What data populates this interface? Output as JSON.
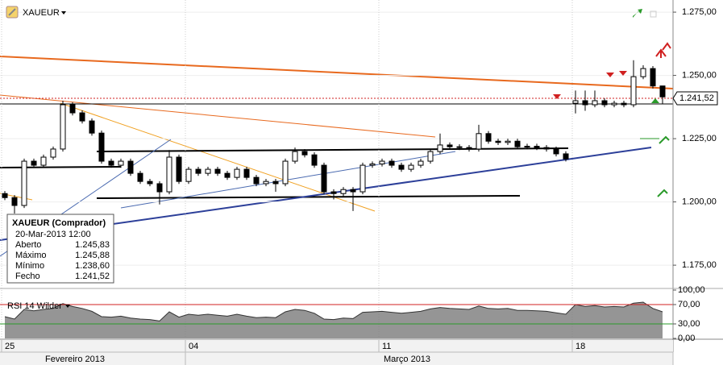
{
  "chart_data": {
    "type": "candlestick",
    "symbol": "XAUEUR",
    "categories": [
      "25",
      null,
      null,
      null,
      null,
      null,
      null,
      null,
      null,
      null,
      null,
      null,
      null,
      null,
      null,
      null,
      null,
      null,
      null,
      "04",
      null,
      null,
      null,
      null,
      null,
      null,
      null,
      null,
      null,
      null,
      null,
      null,
      null,
      null,
      null,
      null,
      null,
      null,
      null,
      "11",
      null,
      null,
      null,
      null,
      null,
      null,
      null,
      null,
      null,
      null,
      null,
      null,
      null,
      null,
      null,
      null,
      null,
      null,
      null,
      "18",
      null,
      null,
      null,
      null,
      null,
      null,
      null,
      null,
      null
    ],
    "months": [
      "Fevereiro 2013",
      "Março 2013"
    ],
    "open": [
      1203.3,
      1201.7,
      1198.6,
      1216.1,
      1214.5,
      1217.7,
      1220.9,
      1238.4,
      1235.2,
      1232.0,
      1227.2,
      1216.1,
      1214.5,
      1216.1,
      1211.3,
      1208.1,
      1207.2,
      1204.0,
      1217.7,
      1208.1,
      1212.9,
      1211.3,
      1212.9,
      1211.3,
      1209.7,
      1212.9,
      1209.7,
      1207.2,
      1208.1,
      1207.2,
      1216.1,
      1219.9,
      1218.6,
      1214.5,
      1204.0,
      1203.3,
      1204.9,
      1204.0,
      1214.5,
      1215.0,
      1216.1,
      1214.5,
      1212.9,
      1214.5,
      1216.1,
      1219.9,
      1222.5,
      1221.8,
      1221.5,
      1220.9,
      1227.0,
      1224.0,
      1223.5,
      1224.0,
      1221.8,
      1222.0,
      1221.5,
      1220.9,
      1219.0,
      1239.0,
      1240.0,
      1238.4,
      1240.0,
      1238.4,
      1239.0,
      1238.4,
      1249.5,
      1252.7,
      1245.83
    ],
    "high": [
      1204.3,
      1202.7,
      1217.1,
      1217.1,
      1218.7,
      1221.9,
      1240.0,
      1239.4,
      1236.2,
      1233.0,
      1228.2,
      1217.1,
      1217.1,
      1217.1,
      1212.3,
      1209.1,
      1208.2,
      1220.5,
      1218.7,
      1213.9,
      1213.9,
      1213.9,
      1213.9,
      1212.3,
      1213.9,
      1213.9,
      1210.7,
      1209.1,
      1209.1,
      1217.1,
      1221.5,
      1220.9,
      1219.6,
      1215.5,
      1205.0,
      1205.9,
      1205.9,
      1215.5,
      1216.0,
      1217.1,
      1217.1,
      1215.5,
      1215.5,
      1217.1,
      1220.9,
      1227.0,
      1223.5,
      1222.8,
      1222.5,
      1230.5,
      1228.0,
      1225.0,
      1225.0,
      1225.0,
      1223.0,
      1223.0,
      1222.5,
      1221.9,
      1220.0,
      1244.0,
      1244.0,
      1244.0,
      1241.0,
      1240.0,
      1240.0,
      1256.0,
      1254.0,
      1253.7,
      1245.88
    ],
    "low": [
      1200.7,
      1195.4,
      1197.6,
      1213.5,
      1213.5,
      1216.7,
      1219.9,
      1234.2,
      1231.0,
      1226.2,
      1215.1,
      1213.5,
      1213.5,
      1210.3,
      1207.1,
      1206.2,
      1199.0,
      1203.0,
      1207.1,
      1207.1,
      1210.3,
      1210.3,
      1210.3,
      1208.7,
      1208.7,
      1208.7,
      1206.2,
      1206.2,
      1204.0,
      1206.2,
      1215.1,
      1217.6,
      1213.5,
      1203.0,
      1201.0,
      1202.3,
      1196.4,
      1203.0,
      1213.5,
      1214.0,
      1213.5,
      1211.9,
      1211.9,
      1213.5,
      1215.1,
      1218.9,
      1220.8,
      1220.5,
      1219.9,
      1219.9,
      1223.0,
      1222.5,
      1222.5,
      1220.8,
      1220.8,
      1220.5,
      1219.9,
      1218.0,
      1216.0,
      1235.0,
      1236.0,
      1237.4,
      1237.4,
      1237.4,
      1237.4,
      1237.4,
      1248.5,
      1244.8,
      1238.6
    ],
    "close": [
      1201.7,
      1198.6,
      1216.1,
      1214.5,
      1217.7,
      1220.9,
      1238.4,
      1235.2,
      1232.0,
      1227.2,
      1216.1,
      1214.5,
      1216.1,
      1211.3,
      1208.1,
      1207.2,
      1204.0,
      1217.7,
      1208.1,
      1212.9,
      1211.3,
      1212.9,
      1211.3,
      1209.7,
      1212.9,
      1209.7,
      1207.2,
      1208.1,
      1207.2,
      1216.1,
      1219.9,
      1218.6,
      1214.5,
      1204.0,
      1203.3,
      1204.9,
      1204.0,
      1214.5,
      1215.0,
      1216.1,
      1214.5,
      1212.9,
      1214.5,
      1216.1,
      1219.9,
      1222.5,
      1221.8,
      1221.5,
      1220.9,
      1227.0,
      1224.0,
      1223.5,
      1224.0,
      1221.8,
      1222.0,
      1221.5,
      1220.9,
      1219.0,
      1217.0,
      1240.0,
      1238.4,
      1240.0,
      1238.4,
      1239.0,
      1238.4,
      1249.5,
      1252.7,
      1245.83,
      1241.52
    ],
    "ylim": [
      1165.8,
      1279.8
    ],
    "yticks": [
      {
        "value": 1175,
        "label": "1.175,00"
      },
      {
        "value": 1200,
        "label": "1.200,00"
      },
      {
        "value": 1225,
        "label": "1.225,00"
      },
      {
        "value": 1250,
        "label": "1.250,00"
      },
      {
        "value": 1275,
        "label": "1.275,00"
      }
    ],
    "last_label": "1.241,52",
    "info": {
      "title": "XAUEUR (Comprador)",
      "date": "20-Mar-2013 12:00",
      "rows": [
        {
          "label": "Aberto",
          "value": "1.245,83"
        },
        {
          "label": "Máximo",
          "value": "1.245,88"
        },
        {
          "label": "Mínimo",
          "value": "1.238,60"
        },
        {
          "label": "Fecho",
          "value": "1.241,52"
        }
      ]
    },
    "rsi": {
      "name": "RSI 14 Wilder",
      "values": [
        45,
        40,
        60,
        57,
        60,
        62,
        72,
        66,
        62,
        56,
        45,
        44,
        46,
        42,
        40,
        39,
        36,
        55,
        44,
        50,
        48,
        50,
        48,
        46,
        50,
        46,
        43,
        44,
        43,
        55,
        60,
        58,
        52,
        40,
        39,
        42,
        41,
        54,
        55,
        56,
        54,
        52,
        54,
        56,
        61,
        64,
        62,
        61,
        60,
        67,
        62,
        61,
        62,
        58,
        58,
        57,
        56,
        53,
        50,
        70,
        66,
        68,
        65,
        66,
        65,
        73,
        75,
        62,
        55
      ],
      "ylim": [
        0,
        100
      ],
      "yticks": [
        {
          "value": 0,
          "label": "0,00"
        },
        {
          "value": 30,
          "label": "30,00"
        },
        {
          "value": 70,
          "label": "70,00"
        },
        {
          "value": 100,
          "label": "100,00"
        }
      ]
    }
  }
}
